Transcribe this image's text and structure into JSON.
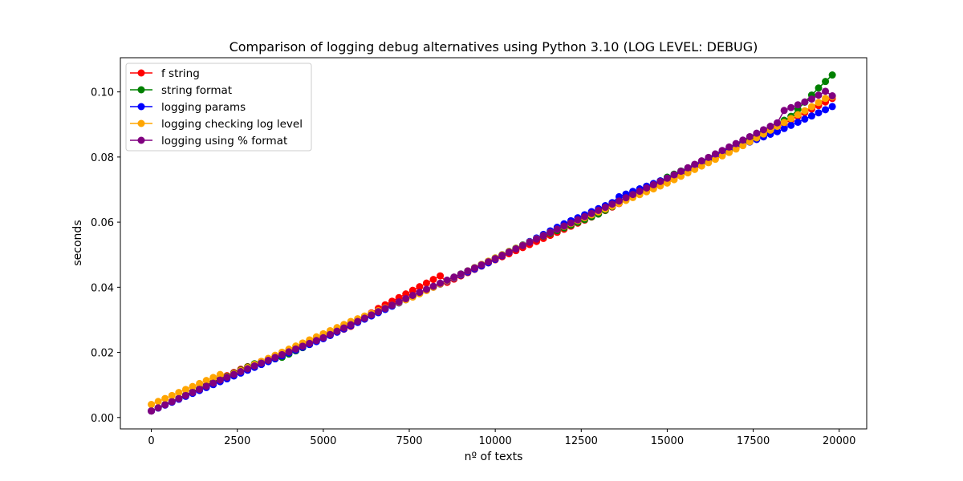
{
  "chart_data": {
    "type": "line",
    "title": "Comparison of logging debug alternatives using Python 3.10 (LOG LEVEL: DEBUG)",
    "xlabel": "nº of texts",
    "ylabel": "seconds",
    "xlim": [
      -900,
      20800
    ],
    "ylim": [
      -0.0035,
      0.1105
    ],
    "xticks": [
      0,
      2500,
      5000,
      7500,
      10000,
      12500,
      15000,
      17500,
      20000
    ],
    "yticks": [
      0.0,
      0.02,
      0.04,
      0.06,
      0.08,
      0.1
    ],
    "xtick_labels": [
      "0",
      "2500",
      "5000",
      "7500",
      "10000",
      "12500",
      "15000",
      "17500",
      "20000"
    ],
    "ytick_labels": [
      "0.00",
      "0.02",
      "0.04",
      "0.06",
      "0.08",
      "0.10"
    ],
    "grid": false,
    "legend_position": "top-left",
    "x": {
      "start": 0,
      "step": 200,
      "count": 100
    },
    "series": [
      {
        "name": "f string",
        "color": "#ff0000",
        "breakpoints": [
          [
            0,
            0.002
          ],
          [
            2600,
            0.0148
          ],
          [
            5000,
            0.0245
          ],
          [
            5800,
            0.028
          ],
          [
            6600,
            0.0335
          ],
          [
            8400,
            0.0435
          ],
          [
            8600,
            0.0415
          ],
          [
            9800,
            0.0475
          ],
          [
            13000,
            0.0625
          ],
          [
            15000,
            0.0732
          ],
          [
            17200,
            0.0838
          ],
          [
            19800,
            0.098
          ]
        ]
      },
      {
        "name": "string format",
        "color": "#008000",
        "breakpoints": [
          [
            0,
            0.002
          ],
          [
            3000,
            0.0165
          ],
          [
            3800,
            0.0185
          ],
          [
            9800,
            0.048
          ],
          [
            11000,
            0.054
          ],
          [
            13000,
            0.0625
          ],
          [
            15000,
            0.0738
          ],
          [
            17400,
            0.0852
          ],
          [
            18600,
            0.0925
          ],
          [
            19400,
            0.1012
          ],
          [
            19800,
            0.1052
          ]
        ]
      },
      {
        "name": "logging params",
        "color": "#0000ff",
        "breakpoints": [
          [
            0,
            0.002
          ],
          [
            2000,
            0.011
          ],
          [
            5000,
            0.0242
          ],
          [
            7600,
            0.0372
          ],
          [
            9800,
            0.0475
          ],
          [
            12000,
            0.0595
          ],
          [
            13400,
            0.066
          ],
          [
            13600,
            0.0678
          ],
          [
            15000,
            0.0735
          ],
          [
            17200,
            0.0838
          ],
          [
            18200,
            0.0878
          ],
          [
            19800,
            0.0955
          ]
        ]
      },
      {
        "name": "logging checking log level",
        "color": "#ffa500",
        "breakpoints": [
          [
            0,
            0.004
          ],
          [
            2000,
            0.0132
          ],
          [
            2200,
            0.0125
          ],
          [
            5800,
            0.0295
          ],
          [
            7600,
            0.037
          ],
          [
            9800,
            0.048
          ],
          [
            11800,
            0.0578
          ],
          [
            15000,
            0.072
          ],
          [
            17200,
            0.0835
          ],
          [
            19000,
            0.0942
          ],
          [
            19600,
            0.098
          ],
          [
            19800,
            0.0985
          ]
        ]
      },
      {
        "name": "logging using % format",
        "color": "#800080",
        "breakpoints": [
          [
            0,
            0.002
          ],
          [
            2000,
            0.0115
          ],
          [
            5000,
            0.0245
          ],
          [
            7600,
            0.0375
          ],
          [
            9800,
            0.0478
          ],
          [
            12000,
            0.0588
          ],
          [
            13600,
            0.0665
          ],
          [
            15000,
            0.0735
          ],
          [
            17200,
            0.0852
          ],
          [
            18200,
            0.0905
          ],
          [
            18400,
            0.0943
          ],
          [
            19200,
            0.0978
          ],
          [
            19600,
            0.1002
          ],
          [
            19800,
            0.0988
          ]
        ]
      }
    ]
  }
}
